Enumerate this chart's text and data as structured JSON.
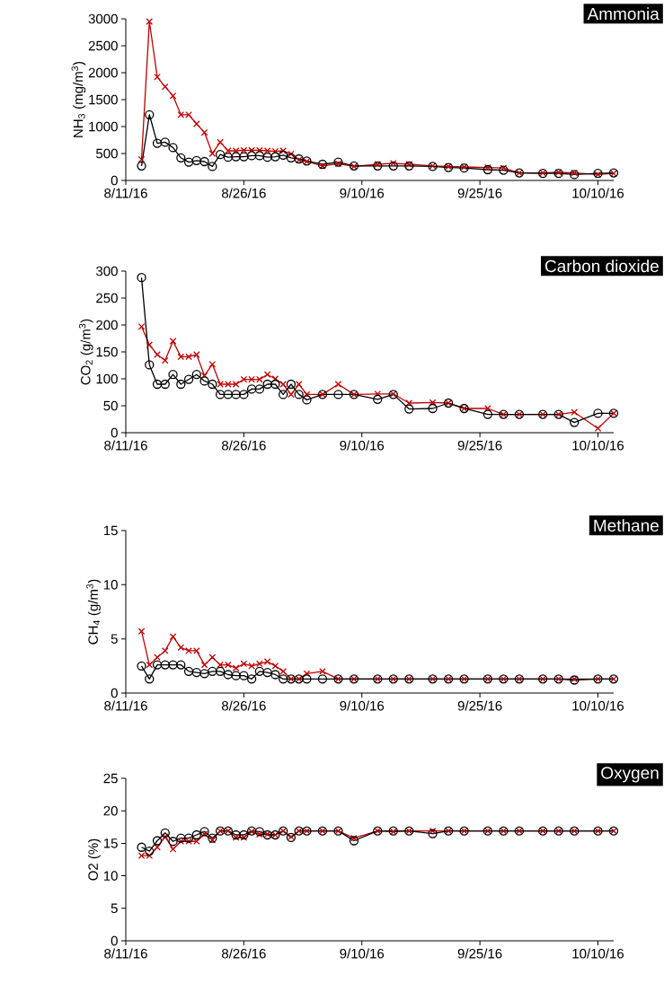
{
  "chart_data": [
    {
      "type": "line",
      "title": "Ammonia",
      "ylabel": "NH$_{3}$ (mg/m$^{3}$)",
      "x": [
        "2016-08-13",
        "2016-08-14",
        "2016-08-15",
        "2016-08-16",
        "2016-08-17",
        "2016-08-18",
        "2016-08-19",
        "2016-08-20",
        "2016-08-21",
        "2016-08-22",
        "2016-08-23",
        "2016-08-24",
        "2016-08-25",
        "2016-08-26",
        "2016-08-27",
        "2016-08-28",
        "2016-08-29",
        "2016-08-30",
        "2016-08-31",
        "2016-09-01",
        "2016-09-02",
        "2016-09-03",
        "2016-09-05",
        "2016-09-07",
        "2016-09-09",
        "2016-09-12",
        "2016-09-14",
        "2016-09-16",
        "2016-09-19",
        "2016-09-21",
        "2016-09-23",
        "2016-09-26",
        "2016-09-28",
        "2016-09-30",
        "2016-10-03",
        "2016-10-05",
        "2016-10-07",
        "2016-10-10",
        "2016-10-12"
      ],
      "series": [
        {
          "color": "#c00000",
          "marker": "cross",
          "values": [
            390,
            2950,
            1920,
            1740,
            1570,
            1220,
            1220,
            1050,
            890,
            500,
            710,
            550,
            550,
            560,
            560,
            560,
            550,
            540,
            550,
            490,
            380,
            350,
            270,
            310,
            260,
            300,
            320,
            300,
            270,
            260,
            250,
            240,
            230,
            140,
            140,
            150,
            140,
            110,
            130
          ]
        },
        {
          "color": "#000000",
          "marker": "circle",
          "values": [
            270,
            1220,
            690,
            710,
            610,
            420,
            340,
            370,
            350,
            260,
            480,
            430,
            440,
            440,
            460,
            460,
            430,
            440,
            470,
            420,
            400,
            360,
            300,
            340,
            270,
            270,
            270,
            270,
            260,
            240,
            230,
            200,
            190,
            140,
            130,
            130,
            110,
            130,
            140
          ]
        }
      ],
      "xlim": [
        "2016-08-11",
        "2016-10-12"
      ],
      "xticks": [
        {
          "value": "2016-08-11",
          "label": "8/11/16"
        },
        {
          "value": "2016-08-26",
          "label": "8/26/16"
        },
        {
          "value": "2016-09-10",
          "label": "9/10/16"
        },
        {
          "value": "2016-09-25",
          "label": "9/25/16"
        },
        {
          "value": "2016-10-10",
          "label": "10/10/16"
        }
      ],
      "ylim": [
        0,
        3000
      ],
      "yticks": [
        0,
        500,
        1000,
        1500,
        2000,
        2500,
        3000
      ]
    },
    {
      "type": "line",
      "title": "Carbon dioxide",
      "ylabel": "CO$_{2}$ (g/m$^{3}$)",
      "x": [
        "2016-08-13",
        "2016-08-14",
        "2016-08-15",
        "2016-08-16",
        "2016-08-17",
        "2016-08-18",
        "2016-08-19",
        "2016-08-20",
        "2016-08-21",
        "2016-08-22",
        "2016-08-23",
        "2016-08-24",
        "2016-08-25",
        "2016-08-26",
        "2016-08-27",
        "2016-08-28",
        "2016-08-29",
        "2016-08-30",
        "2016-08-31",
        "2016-09-01",
        "2016-09-02",
        "2016-09-03",
        "2016-09-05",
        "2016-09-07",
        "2016-09-09",
        "2016-09-12",
        "2016-09-14",
        "2016-09-16",
        "2016-09-19",
        "2016-09-21",
        "2016-09-23",
        "2016-09-26",
        "2016-09-28",
        "2016-09-30",
        "2016-10-03",
        "2016-10-05",
        "2016-10-07",
        "2016-10-10",
        "2016-10-12"
      ],
      "series": [
        {
          "color": "#c00000",
          "marker": "cross",
          "values": [
            197,
            163,
            145,
            134,
            170,
            141,
            141,
            145,
            106,
            127,
            90,
            90,
            90,
            99,
            99,
            99,
            108,
            100,
            90,
            71,
            90,
            71,
            71,
            90,
            71,
            72,
            72,
            55,
            56,
            55,
            45,
            45,
            34,
            34,
            34,
            34,
            38,
            8,
            36
          ]
        },
        {
          "color": "#000000",
          "marker": "circle",
          "values": [
            288,
            126,
            90,
            90,
            108,
            90,
            99,
            108,
            96,
            90,
            71,
            71,
            71,
            71,
            81,
            81,
            90,
            90,
            71,
            90,
            71,
            61,
            71,
            71,
            71,
            62,
            71,
            44,
            45,
            55,
            45,
            34,
            34,
            34,
            34,
            34,
            19,
            36,
            36
          ]
        }
      ],
      "xlim": [
        "2016-08-11",
        "2016-10-12"
      ],
      "xticks": [
        {
          "value": "2016-08-11",
          "label": "8/11/16"
        },
        {
          "value": "2016-08-26",
          "label": "8/26/16"
        },
        {
          "value": "2016-09-10",
          "label": "9/10/16"
        },
        {
          "value": "2016-09-25",
          "label": "9/25/16"
        },
        {
          "value": "2016-10-10",
          "label": "10/10/16"
        }
      ],
      "ylim": [
        0,
        300
      ],
      "yticks": [
        0,
        50,
        100,
        150,
        200,
        250,
        300
      ]
    },
    {
      "type": "line",
      "title": "Methane",
      "ylabel": "CH$_{4}$ (g/m$^{3}$)",
      "x": [
        "2016-08-13",
        "2016-08-14",
        "2016-08-15",
        "2016-08-16",
        "2016-08-17",
        "2016-08-18",
        "2016-08-19",
        "2016-08-20",
        "2016-08-21",
        "2016-08-22",
        "2016-08-23",
        "2016-08-24",
        "2016-08-25",
        "2016-08-26",
        "2016-08-27",
        "2016-08-28",
        "2016-08-29",
        "2016-08-30",
        "2016-08-31",
        "2016-09-01",
        "2016-09-02",
        "2016-09-03",
        "2016-09-05",
        "2016-09-07",
        "2016-09-09",
        "2016-09-12",
        "2016-09-14",
        "2016-09-16",
        "2016-09-19",
        "2016-09-21",
        "2016-09-23",
        "2016-09-26",
        "2016-09-28",
        "2016-09-30",
        "2016-10-03",
        "2016-10-05",
        "2016-10-07",
        "2016-10-10",
        "2016-10-12"
      ],
      "series": [
        {
          "color": "#c00000",
          "marker": "cross",
          "values": [
            5.7,
            2.6,
            3.3,
            3.9,
            5.2,
            4.2,
            3.9,
            3.9,
            2.6,
            3.3,
            2.6,
            2.6,
            2.3,
            2.7,
            2.5,
            2.7,
            2.9,
            2.5,
            2.0,
            1.3,
            1.3,
            1.8,
            2.0,
            1.3,
            1.3,
            1.3,
            1.3,
            1.3,
            1.3,
            1.3,
            1.3,
            1.3,
            1.3,
            1.3,
            1.3,
            1.3,
            1.3,
            1.3,
            1.3
          ]
        },
        {
          "color": "#000000",
          "marker": "circle",
          "values": [
            2.5,
            1.3,
            2.6,
            2.6,
            2.6,
            2.6,
            2.0,
            1.9,
            1.8,
            2.0,
            2.0,
            1.7,
            1.6,
            1.6,
            1.3,
            2.0,
            1.9,
            1.7,
            1.3,
            1.3,
            1.3,
            1.3,
            1.3,
            1.3,
            1.3,
            1.3,
            1.3,
            1.3,
            1.3,
            1.3,
            1.3,
            1.3,
            1.3,
            1.3,
            1.3,
            1.3,
            1.2,
            1.3,
            1.3
          ]
        }
      ],
      "xlim": [
        "2016-08-11",
        "2016-10-12"
      ],
      "xticks": [
        {
          "value": "2016-08-11",
          "label": "8/11/16"
        },
        {
          "value": "2016-08-26",
          "label": "8/26/16"
        },
        {
          "value": "2016-09-10",
          "label": "9/10/16"
        },
        {
          "value": "2016-09-25",
          "label": "9/25/16"
        },
        {
          "value": "2016-10-10",
          "label": "10/10/16"
        }
      ],
      "ylim": [
        0,
        15
      ],
      "yticks": [
        0,
        5,
        10,
        15
      ]
    },
    {
      "type": "line",
      "title": "Oxygen",
      "ylabel": "O2 (%)",
      "x": [
        "2016-08-13",
        "2016-08-14",
        "2016-08-15",
        "2016-08-16",
        "2016-08-17",
        "2016-08-18",
        "2016-08-19",
        "2016-08-20",
        "2016-08-21",
        "2016-08-22",
        "2016-08-23",
        "2016-08-24",
        "2016-08-25",
        "2016-08-26",
        "2016-08-27",
        "2016-08-28",
        "2016-08-29",
        "2016-08-30",
        "2016-08-31",
        "2016-09-01",
        "2016-09-02",
        "2016-09-03",
        "2016-09-05",
        "2016-09-07",
        "2016-09-09",
        "2016-09-12",
        "2016-09-14",
        "2016-09-16",
        "2016-09-19",
        "2016-09-21",
        "2016-09-23",
        "2016-09-26",
        "2016-09-28",
        "2016-09-30",
        "2016-10-03",
        "2016-10-05",
        "2016-10-07",
        "2016-10-10",
        "2016-10-12"
      ],
      "series": [
        {
          "color": "#c00000",
          "marker": "cross",
          "values": [
            13.1,
            13.1,
            14.4,
            16.0,
            14.1,
            15.3,
            15.3,
            15.3,
            16.4,
            15.5,
            16.9,
            16.9,
            15.9,
            15.9,
            16.8,
            16.4,
            16.4,
            16.3,
            16.9,
            16.0,
            16.9,
            16.9,
            16.9,
            16.9,
            15.8,
            16.9,
            16.8,
            16.9,
            16.9,
            16.9,
            16.9,
            16.9,
            16.9,
            16.9,
            16.9,
            16.9,
            16.9,
            16.9,
            16.9
          ]
        },
        {
          "color": "#000000",
          "marker": "circle",
          "values": [
            14.4,
            13.8,
            15.4,
            16.6,
            15.3,
            15.8,
            15.8,
            16.3,
            16.8,
            15.8,
            16.9,
            16.9,
            16.3,
            16.3,
            16.9,
            16.8,
            16.3,
            16.3,
            16.9,
            15.9,
            16.9,
            16.9,
            16.9,
            16.9,
            15.4,
            16.9,
            16.9,
            16.9,
            16.5,
            16.9,
            16.9,
            16.9,
            16.9,
            16.9,
            16.9,
            16.9,
            16.9,
            16.9,
            16.9
          ]
        }
      ],
      "xlim": [
        "2016-08-11",
        "2016-10-12"
      ],
      "xticks": [
        {
          "value": "2016-08-11",
          "label": "8/11/16"
        },
        {
          "value": "2016-08-26",
          "label": "8/26/16"
        },
        {
          "value": "2016-09-10",
          "label": "9/10/16"
        },
        {
          "value": "2016-09-25",
          "label": "9/25/16"
        },
        {
          "value": "2016-10-10",
          "label": "10/10/16"
        }
      ],
      "ylim": [
        0,
        25
      ],
      "yticks": [
        0,
        5,
        10,
        15,
        20,
        25
      ]
    }
  ]
}
